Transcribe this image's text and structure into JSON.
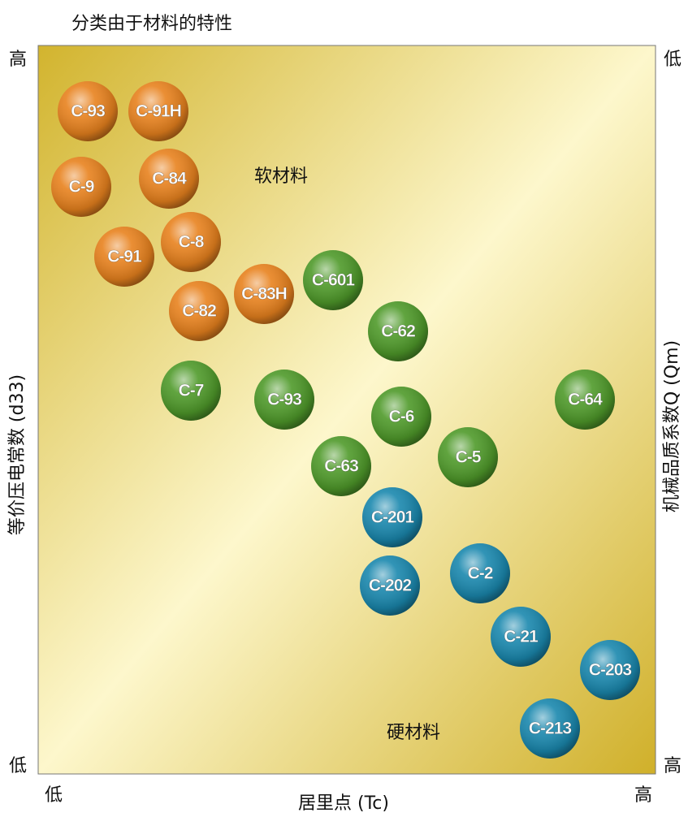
{
  "header": {
    "title": "分类由于材料的特性"
  },
  "axes": {
    "x_label": "居里点 (Tc)",
    "y_left_label": "等价压电常数 (d33)",
    "y_right_label": "机械品质系数Q (Qm)",
    "left_high": "高",
    "left_low": "低",
    "right_low": "低",
    "right_high": "高",
    "bottom_low": "低",
    "bottom_high": "高"
  },
  "regions": {
    "soft": {
      "label": "软材料",
      "color": "#e8821e"
    },
    "hard": {
      "label": "硬材料",
      "color": "#2b3f8c"
    }
  },
  "nodes": [
    {
      "label": "C-93",
      "color": "#e8821e"
    },
    {
      "label": "C-91H",
      "color": "#e8821e"
    },
    {
      "label": "C-9",
      "color": "#e8821e"
    },
    {
      "label": "C-84",
      "color": "#e8821e"
    },
    {
      "label": "C-91",
      "color": "#e8821e"
    },
    {
      "label": "C-8",
      "color": "#e8821e"
    },
    {
      "label": "C-82",
      "color": "#e8821e"
    },
    {
      "label": "C-83H",
      "color": "#e8821e"
    },
    {
      "label": "C-601",
      "color": "#4f9a2a"
    },
    {
      "label": "C-62",
      "color": "#4f9a2a"
    },
    {
      "label": "C-7",
      "color": "#4f9a2a"
    },
    {
      "label": "C-93",
      "color": "#4f9a2a"
    },
    {
      "label": "C-6",
      "color": "#4f9a2a"
    },
    {
      "label": "C-64",
      "color": "#4f9a2a"
    },
    {
      "label": "C-63",
      "color": "#4f9a2a"
    },
    {
      "label": "C-5",
      "color": "#4f9a2a"
    },
    {
      "label": "C-201",
      "color": "#1a88ae"
    },
    {
      "label": "C-202",
      "color": "#1a88ae"
    },
    {
      "label": "C-2",
      "color": "#1a88ae"
    },
    {
      "label": "C-21",
      "color": "#1a88ae"
    },
    {
      "label": "C-203",
      "color": "#1a88ae"
    },
    {
      "label": "C-213",
      "color": "#1a88ae"
    }
  ]
}
